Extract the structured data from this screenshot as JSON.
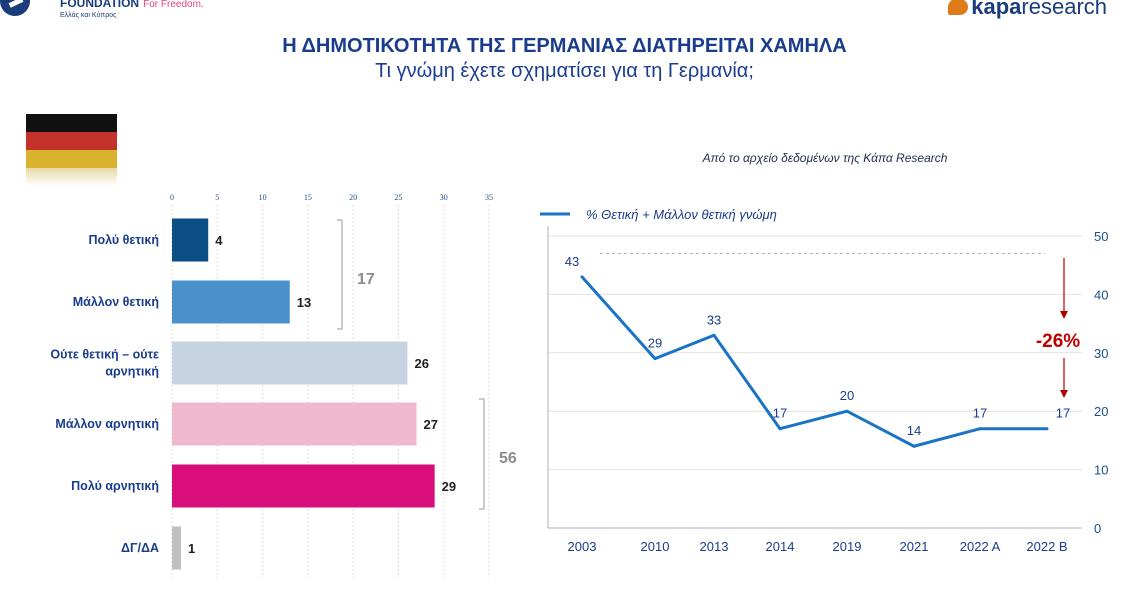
{
  "header": {
    "logo_left_brand": "FOUNDATION",
    "logo_left_tagline": "For Freedom.",
    "logo_left_sub": "Ελλάς και Κύπρος",
    "logo_right_kapa": "kapa",
    "logo_right_research": "research",
    "title": "Η ΔΗΜΟΤΙΚΟΤΗΤΑ ΤΗΣ ΓΕΡΜΑΝΙΑΣ ΔΙΑΤΗΡΕΙΤΑΙ ΧΑΜΗΛΑ",
    "subtitle": "Τι γνώμη έχετε σχηματίσει για τη Γερμανία;"
  },
  "flag": {
    "colors": [
      "#111111",
      "#c4322b",
      "#d9b22e"
    ]
  },
  "source_note": "Από το αρχείο δεδομένων της Κάπα Research",
  "chart_data": [
    {
      "type": "bar",
      "orientation": "horizontal",
      "categories": [
        "Πολύ θετική",
        "Μάλλον θετική",
        "Ούτε θετική – ούτε αρνητική",
        "Μάλλον αρνητική",
        "Πολύ αρνητική",
        "ΔΓ/ΔΑ"
      ],
      "category_lines": [
        [
          "Πολύ θετική"
        ],
        [
          "Μάλλον θετική"
        ],
        [
          "Ούτε θετική – ούτε",
          "αρνητική"
        ],
        [
          "Μάλλον αρνητική"
        ],
        [
          "Πολύ αρνητική"
        ],
        [
          "ΔΓ/ΔΑ"
        ]
      ],
      "values": [
        4,
        13,
        26,
        27,
        29,
        1
      ],
      "colors": [
        "#0b4f86",
        "#4a90c9",
        "#c6d4e2",
        "#f0b8cf",
        "#d90e7b",
        "#c0c0c0"
      ],
      "xlim": [
        0,
        35
      ],
      "xticks": [
        0,
        5,
        10,
        15,
        20,
        25,
        30,
        35
      ],
      "grid": true,
      "groups": [
        {
          "label": "17",
          "from": 0,
          "to": 1
        },
        {
          "label": "56",
          "from": 3,
          "to": 4
        }
      ]
    },
    {
      "type": "line",
      "categories": [
        "2003",
        "2010",
        "2013",
        "2014",
        "2019",
        "2021",
        "2022 Α",
        "2022 Β"
      ],
      "series": [
        {
          "name": "% Θετική + Μάλλον θετική γνώμη",
          "values": [
            43,
            29,
            33,
            17,
            20,
            14,
            17,
            17
          ],
          "color": "#1a73c4"
        }
      ],
      "ylim": [
        0,
        50
      ],
      "yticks": [
        0,
        10,
        20,
        30,
        40,
        50
      ],
      "grid": true,
      "reference_value": 47,
      "change_annotation": "-26%",
      "legend_position": "top-left"
    }
  ]
}
